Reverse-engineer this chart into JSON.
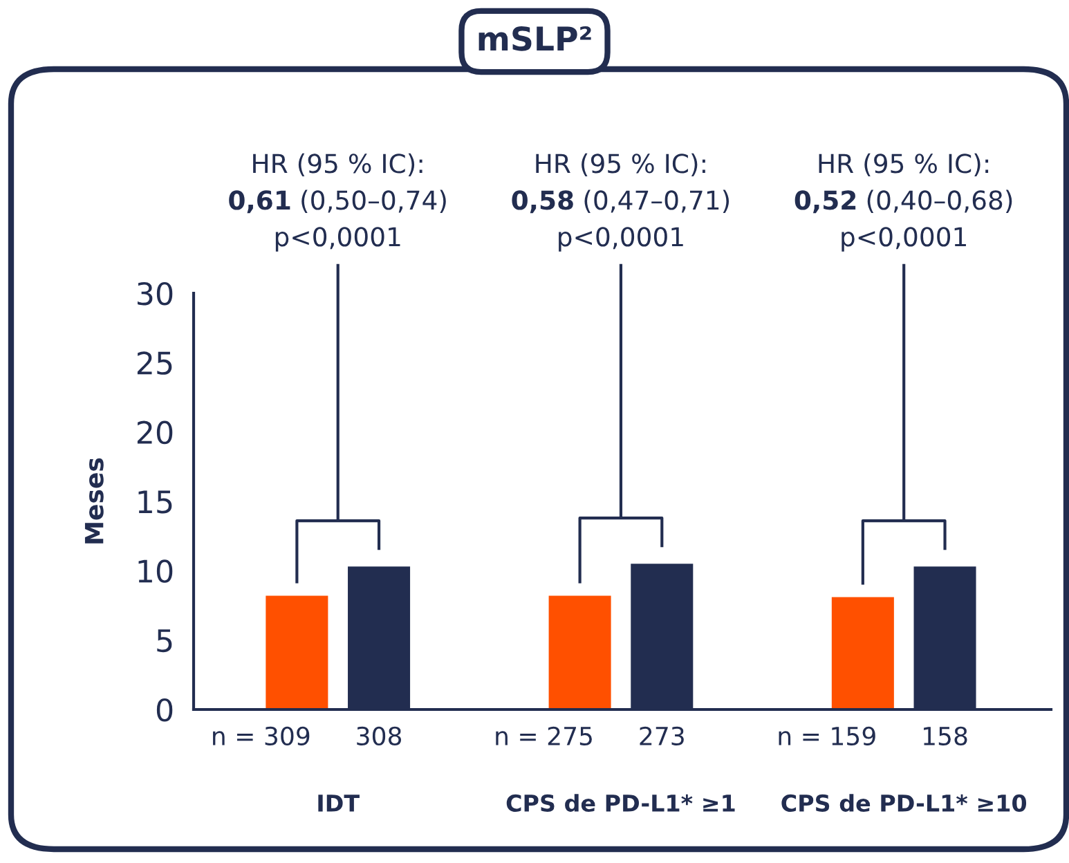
{
  "chart_data": {
    "type": "bar",
    "title": "mSLP²",
    "ylabel": "Meses",
    "categories": [
      "IDT",
      "CPS de PD-L1* ≥1",
      "CPS de PD-L1* ≥10"
    ],
    "series": [
      {
        "color": "#ff5000",
        "values": [
          8.2,
          8.2,
          8.1
        ]
      },
      {
        "color": "#222d50",
        "values": [
          10.3,
          10.5,
          10.3
        ]
      }
    ],
    "ylim": [
      0,
      30
    ],
    "yticks": [
      0,
      5,
      10,
      15,
      20,
      25,
      30
    ],
    "grid": false,
    "legend": false,
    "annotations": [
      "HR (95 % IC):\n0,61 (0,50–0,74)\np<0,0001",
      "HR (95 % IC):\n0,58 (0,47–0,71)\np<0,0001",
      "HR (95 % IC):\n0,52 (0,40–0,68)\np<0,0001",
      "n = 309",
      "308",
      "n = 275",
      "273",
      "n = 159",
      "158"
    ]
  }
}
